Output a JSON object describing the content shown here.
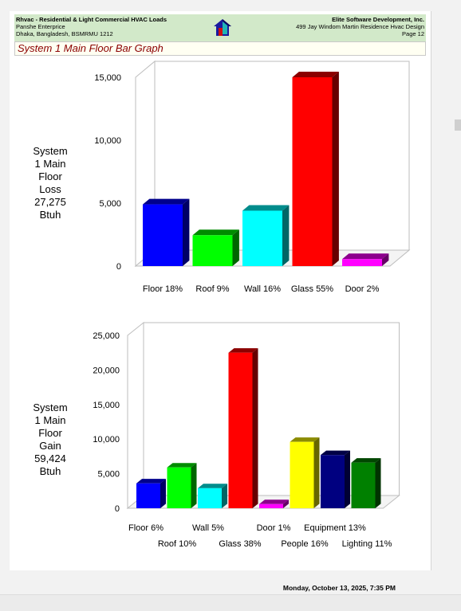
{
  "header": {
    "left_line1": "Rhvac - Residential & Light Commercial HVAC Loads",
    "left_line2": "Panshe Enterprice",
    "left_line3": "Dhaka, Bangladesh, BSMRMU 1212",
    "right_line1": "Elite Software Development, Inc.",
    "right_line2": "499 Jay Windom Martin Residence Hvac Design",
    "right_line3": "Page 12",
    "logo_icon": "house-logo-icon"
  },
  "page_title": "System 1 Main Floor Bar Graph",
  "loss": {
    "side_label": [
      "System",
      "1 Main",
      "Floor",
      "Loss",
      "27,275",
      "Btuh"
    ]
  },
  "gain": {
    "side_label": [
      "System",
      "1 Main",
      "Floor",
      "Gain",
      "59,424",
      "Btuh"
    ]
  },
  "footer": {
    "timestamp": "Monday, October 13, 2025, 7:35 PM"
  },
  "chart_data": [
    {
      "type": "bar",
      "categories": [
        "Floor 18%",
        "Roof 9%",
        "Wall 16%",
        "Glass 55%",
        "Door 2%"
      ],
      "values": [
        4900,
        2450,
        4400,
        15000,
        550
      ],
      "colors": [
        "#0000ff",
        "#00ff00",
        "#00ffff",
        "#ff0000",
        "#ff00ff"
      ],
      "ylim": [
        0,
        15000
      ],
      "yticks": [
        "15,000",
        "10,000",
        "5,000",
        "0"
      ]
    },
    {
      "type": "bar",
      "categories": [
        "Floor 6%",
        "Roof 10%",
        "Wall 5%",
        "Glass 38%",
        "Door 1%",
        "People 16%",
        "Equipment 13%",
        "Lighting 11%"
      ],
      "values": [
        3600,
        5900,
        2900,
        22500,
        600,
        9600,
        7700,
        6600
      ],
      "colors": [
        "#0000ff",
        "#00ff00",
        "#00ffff",
        "#ff0000",
        "#ff00ff",
        "#ffff00",
        "#000080",
        "#008000"
      ],
      "ylim": [
        0,
        25000
      ],
      "yticks": [
        "25,000",
        "20,000",
        "15,000",
        "10,000",
        "5,000",
        "0"
      ]
    }
  ]
}
